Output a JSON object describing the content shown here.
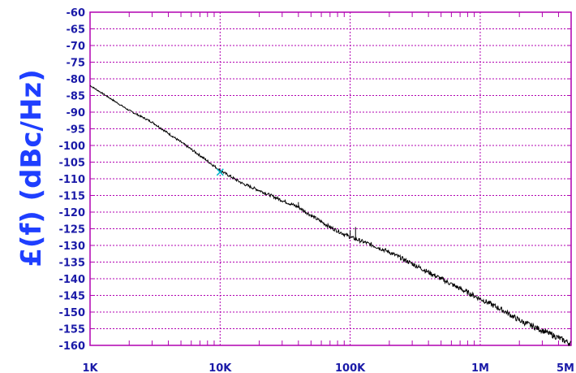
{
  "colors": {
    "grid": "#b000b0",
    "axis_text": "#1a1aa8",
    "ylabel": "#1f3fff",
    "trace": "#000000",
    "marker": "#00b4c8",
    "background": "#ffffff"
  },
  "chart_data": {
    "type": "line",
    "title": "",
    "ylabel": "£(f) (dBc/Hz)",
    "xlabel": "",
    "x_scale": "log",
    "xlim": [
      1000,
      5000000
    ],
    "ylim": [
      -160,
      -60
    ],
    "x_ticks": [
      {
        "value": 1000,
        "label": "1K"
      },
      {
        "value": 10000,
        "label": "10K"
      },
      {
        "value": 100000,
        "label": "100K"
      },
      {
        "value": 1000000,
        "label": "1M"
      },
      {
        "value": 5000000,
        "label": "5M"
      }
    ],
    "y_ticks": [
      -60,
      -65,
      -70,
      -75,
      -80,
      -85,
      -90,
      -95,
      -100,
      -105,
      -110,
      -115,
      -120,
      -125,
      -130,
      -135,
      -140,
      -145,
      -150,
      -155,
      -160
    ],
    "y_tick_labels": [
      "-60",
      "-65",
      "-70",
      "-75",
      "-80",
      "-85",
      "-90",
      "-95",
      "-100",
      "-105",
      "-110",
      "-115",
      "-120",
      "-125",
      "-130",
      "-135",
      "-140",
      "-145",
      "-150",
      "-155",
      "-160"
    ],
    "grid": true,
    "series": [
      {
        "x": [
          1000,
          2000,
          3000,
          5000,
          7000,
          10000,
          15000,
          20000,
          30000,
          40000,
          50000,
          70000,
          100000,
          150000,
          200000,
          300000,
          500000,
          700000,
          1000000,
          1500000,
          2000000,
          3000000,
          5000000
        ],
        "values": [
          -82,
          -89.5,
          -93,
          -99,
          -103,
          -107.5,
          -111.5,
          -113.5,
          -116.5,
          -118.5,
          -121,
          -124.5,
          -127.5,
          -130,
          -132,
          -135.5,
          -140,
          -143,
          -146,
          -149.5,
          -152.5,
          -155.5,
          -159.5
        ]
      }
    ],
    "spurs": [
      {
        "x": 40000,
        "y": -117
      },
      {
        "x": 100000,
        "y": -125.5
      },
      {
        "x": 110000,
        "y": -124.5
      }
    ],
    "marker": {
      "x": 10000,
      "y": -108
    }
  }
}
